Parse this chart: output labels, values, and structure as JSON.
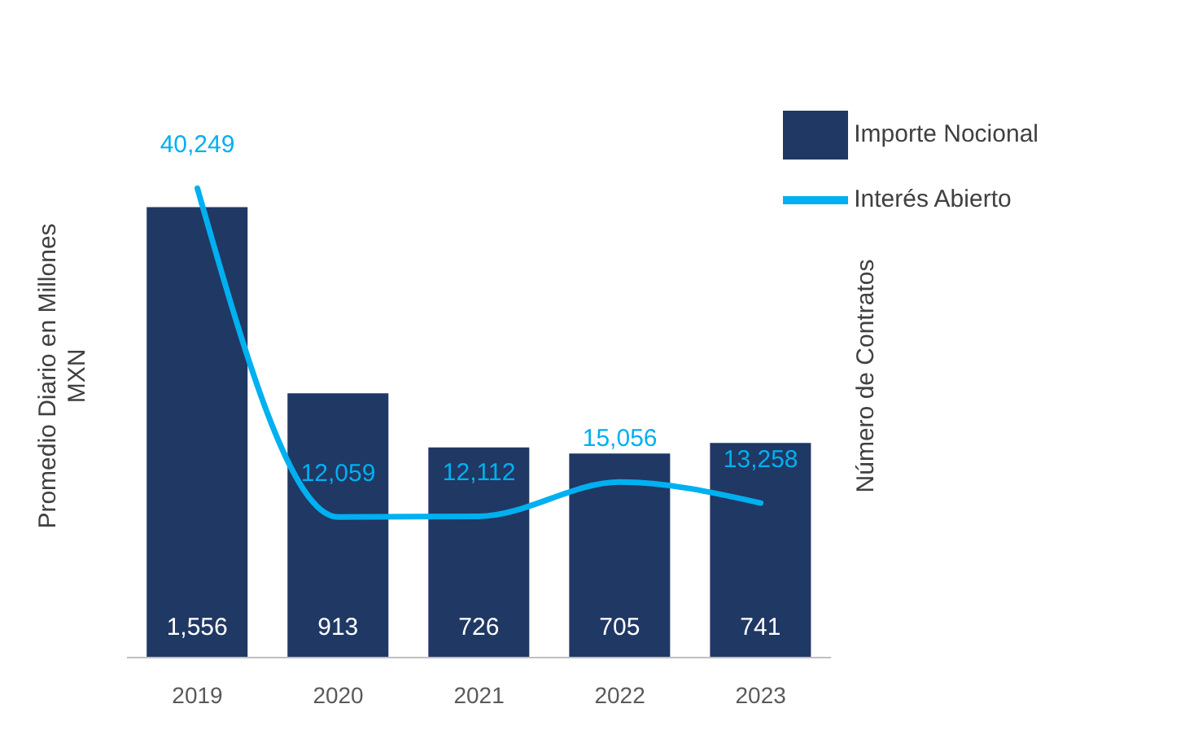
{
  "chart_data": {
    "type": "bar",
    "categories": [
      "2019",
      "2020",
      "2021",
      "2022",
      "2023"
    ],
    "ylabel": "Promedio Diario en Millones MXN",
    "y2label": "Número de Contratos",
    "tick_labels": "x",
    "grid": false,
    "legend": "top right",
    "marker": "none",
    "line_style": "solid",
    "series": [
      {
        "name": "Importe Nocional",
        "color": "#203864",
        "values": [
          1556,
          913,
          726,
          705,
          741
        ],
        "value_labels": [
          "1,556",
          "913",
          "726",
          "705",
          "741"
        ]
      },
      {
        "name": "Interés Abierto",
        "type": "line",
        "axis": "y2",
        "color": "#00b0f0",
        "values": [
          40249,
          12059,
          12112,
          15056,
          13258
        ],
        "value_labels": [
          "40,249",
          "12,059",
          "12,112",
          "15,056",
          "13,258"
        ]
      }
    ]
  }
}
